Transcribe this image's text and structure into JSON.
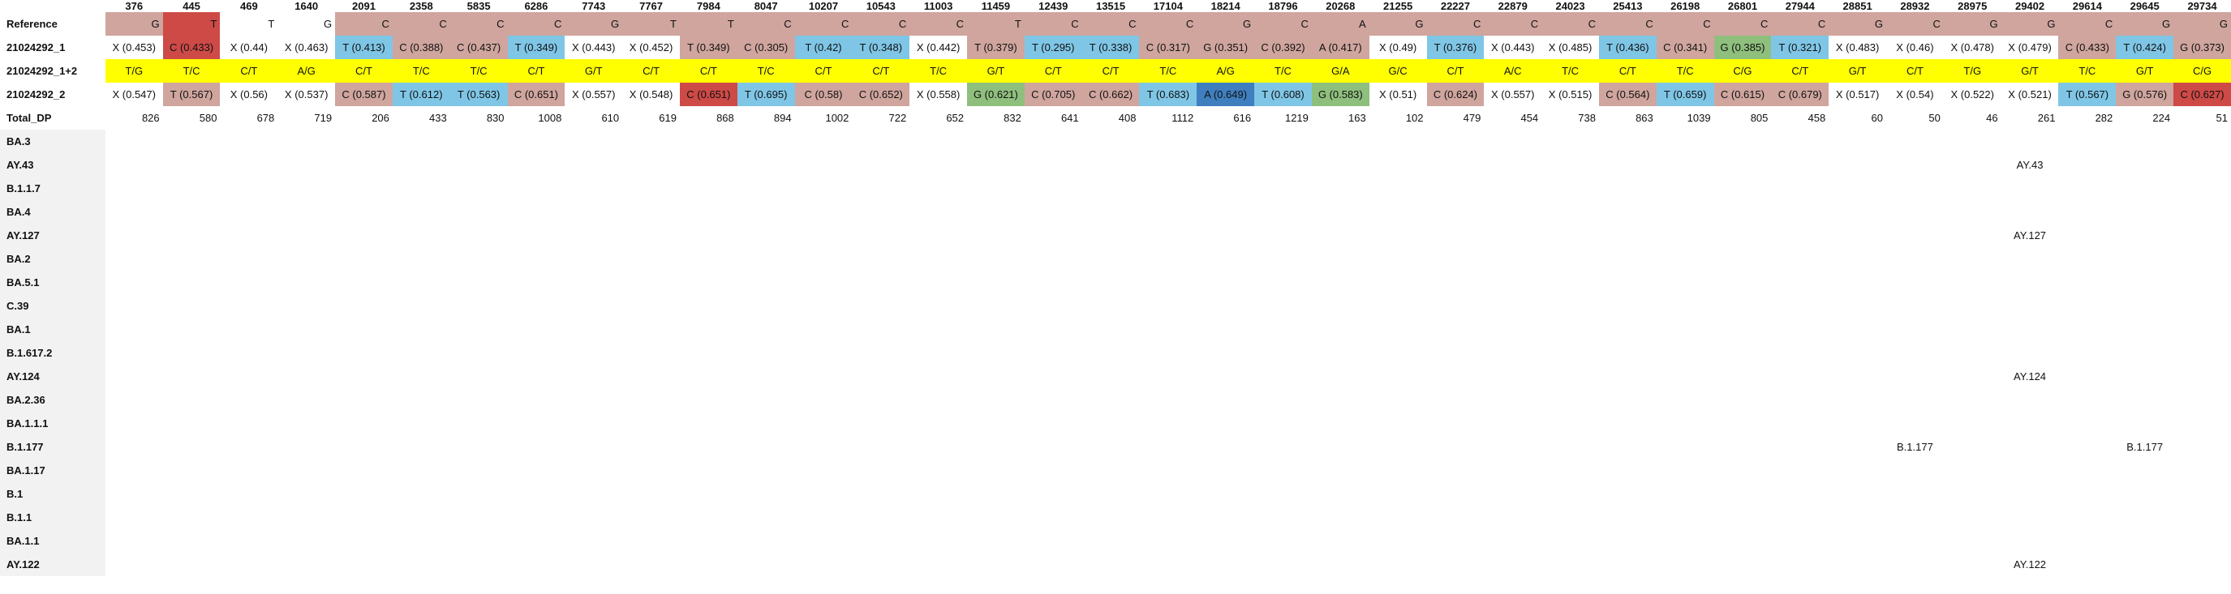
{
  "header": {
    "corner": "",
    "positions": [
      "376",
      "445",
      "469",
      "1640",
      "2091",
      "2358",
      "5835",
      "6286",
      "7743",
      "7767",
      "7984",
      "8047",
      "10207",
      "10543",
      "11003",
      "11459",
      "12439",
      "13515",
      "17104",
      "18214",
      "18796",
      "20268",
      "21255",
      "22227",
      "22879",
      "24023",
      "25413",
      "26198",
      "26801",
      "27944",
      "28851",
      "28932",
      "28975",
      "29402",
      "29614",
      "29645",
      "29734"
    ]
  },
  "colors": {
    "ref": "#cfa59e",
    "T": "#7fc6e6",
    "C": "#cfa59e",
    "C_hi": "#cd4a47",
    "G": "#8fbf7d",
    "A": "#3f7fbf",
    "X": "#ffffff",
    "yellow": "#ffff00",
    "stripe": "#f2f2f2"
  },
  "rows": {
    "reference": {
      "label": "Reference",
      "cells": [
        {
          "t": "G",
          "c": "ref"
        },
        {
          "t": "T",
          "c": "C_hi"
        },
        {
          "t": "T",
          "c": "X"
        },
        {
          "t": "G",
          "c": "X"
        },
        {
          "t": "C",
          "c": "ref"
        },
        {
          "t": "C",
          "c": "ref"
        },
        {
          "t": "C",
          "c": "ref"
        },
        {
          "t": "C",
          "c": "ref"
        },
        {
          "t": "G",
          "c": "ref"
        },
        {
          "t": "T",
          "c": "ref"
        },
        {
          "t": "T",
          "c": "ref"
        },
        {
          "t": "C",
          "c": "ref"
        },
        {
          "t": "C",
          "c": "ref"
        },
        {
          "t": "C",
          "c": "ref"
        },
        {
          "t": "C",
          "c": "ref"
        },
        {
          "t": "T",
          "c": "ref"
        },
        {
          "t": "C",
          "c": "ref"
        },
        {
          "t": "C",
          "c": "ref"
        },
        {
          "t": "C",
          "c": "ref"
        },
        {
          "t": "G",
          "c": "ref"
        },
        {
          "t": "C",
          "c": "ref"
        },
        {
          "t": "A",
          "c": "ref"
        },
        {
          "t": "G",
          "c": "ref"
        },
        {
          "t": "C",
          "c": "ref"
        },
        {
          "t": "C",
          "c": "ref"
        },
        {
          "t": "C",
          "c": "ref"
        },
        {
          "t": "C",
          "c": "ref"
        },
        {
          "t": "C",
          "c": "ref"
        },
        {
          "t": "C",
          "c": "ref"
        },
        {
          "t": "C",
          "c": "ref"
        },
        {
          "t": "G",
          "c": "ref"
        },
        {
          "t": "C",
          "c": "ref"
        },
        {
          "t": "G",
          "c": "ref"
        },
        {
          "t": "G",
          "c": "ref"
        },
        {
          "t": "C",
          "c": "ref"
        },
        {
          "t": "G",
          "c": "ref"
        },
        {
          "t": "G",
          "c": "ref"
        }
      ]
    },
    "s1": {
      "label": "21024292_1",
      "cells": [
        {
          "t": "X (0.453)",
          "c": "X"
        },
        {
          "t": "C (0.433)",
          "c": "C_hi"
        },
        {
          "t": "X (0.44)",
          "c": "X"
        },
        {
          "t": "X (0.463)",
          "c": "X"
        },
        {
          "t": "T (0.413)",
          "c": "T"
        },
        {
          "t": "C (0.388)",
          "c": "C"
        },
        {
          "t": "C (0.437)",
          "c": "C"
        },
        {
          "t": "T (0.349)",
          "c": "T"
        },
        {
          "t": "X (0.443)",
          "c": "X"
        },
        {
          "t": "X (0.452)",
          "c": "X"
        },
        {
          "t": "T (0.349)",
          "c": "C"
        },
        {
          "t": "C (0.305)",
          "c": "C"
        },
        {
          "t": "T (0.42)",
          "c": "T"
        },
        {
          "t": "T (0.348)",
          "c": "T"
        },
        {
          "t": "X (0.442)",
          "c": "X"
        },
        {
          "t": "T (0.379)",
          "c": "C"
        },
        {
          "t": "T (0.295)",
          "c": "T"
        },
        {
          "t": "T (0.338)",
          "c": "T"
        },
        {
          "t": "C (0.317)",
          "c": "C"
        },
        {
          "t": "G (0.351)",
          "c": "C"
        },
        {
          "t": "C (0.392)",
          "c": "C"
        },
        {
          "t": "A (0.417)",
          "c": "C"
        },
        {
          "t": "X (0.49)",
          "c": "X"
        },
        {
          "t": "T (0.376)",
          "c": "T"
        },
        {
          "t": "X (0.443)",
          "c": "X"
        },
        {
          "t": "X (0.485)",
          "c": "X"
        },
        {
          "t": "T (0.436)",
          "c": "T"
        },
        {
          "t": "C (0.341)",
          "c": "C"
        },
        {
          "t": "G (0.385)",
          "c": "G"
        },
        {
          "t": "T (0.321)",
          "c": "T"
        },
        {
          "t": "X (0.483)",
          "c": "X"
        },
        {
          "t": "X (0.46)",
          "c": "X"
        },
        {
          "t": "X (0.478)",
          "c": "X"
        },
        {
          "t": "X (0.479)",
          "c": "X"
        },
        {
          "t": "C (0.433)",
          "c": "C"
        },
        {
          "t": "T (0.424)",
          "c": "T"
        },
        {
          "t": "G (0.373)",
          "c": "C"
        }
      ]
    },
    "s12": {
      "label": "21024292_1+2",
      "cells": [
        "T/G",
        "T/C",
        "C/T",
        "A/G",
        "C/T",
        "T/C",
        "T/C",
        "C/T",
        "G/T",
        "C/T",
        "C/T",
        "T/C",
        "C/T",
        "C/T",
        "T/C",
        "G/T",
        "C/T",
        "C/T",
        "T/C",
        "A/G",
        "T/C",
        "G/A",
        "G/C",
        "C/T",
        "A/C",
        "T/C",
        "C/T",
        "T/C",
        "C/G",
        "C/T",
        "G/T",
        "C/T",
        "T/G",
        "G/T",
        "T/C",
        "G/T",
        "C/G"
      ]
    },
    "s2": {
      "label": "21024292_2",
      "cells": [
        {
          "t": "X (0.547)",
          "c": "X"
        },
        {
          "t": "T (0.567)",
          "c": "C"
        },
        {
          "t": "X (0.56)",
          "c": "X"
        },
        {
          "t": "X (0.537)",
          "c": "X"
        },
        {
          "t": "C (0.587)",
          "c": "C"
        },
        {
          "t": "T (0.612)",
          "c": "T"
        },
        {
          "t": "T (0.563)",
          "c": "T"
        },
        {
          "t": "C (0.651)",
          "c": "C"
        },
        {
          "t": "X (0.557)",
          "c": "X"
        },
        {
          "t": "X (0.548)",
          "c": "X"
        },
        {
          "t": "C (0.651)",
          "c": "C_hi"
        },
        {
          "t": "T (0.695)",
          "c": "T"
        },
        {
          "t": "C (0.58)",
          "c": "C"
        },
        {
          "t": "C (0.652)",
          "c": "C"
        },
        {
          "t": "X (0.558)",
          "c": "X"
        },
        {
          "t": "G (0.621)",
          "c": "G"
        },
        {
          "t": "C (0.705)",
          "c": "C"
        },
        {
          "t": "C (0.662)",
          "c": "C"
        },
        {
          "t": "T (0.683)",
          "c": "T"
        },
        {
          "t": "A (0.649)",
          "c": "A"
        },
        {
          "t": "T (0.608)",
          "c": "T"
        },
        {
          "t": "G (0.583)",
          "c": "G"
        },
        {
          "t": "X (0.51)",
          "c": "X"
        },
        {
          "t": "C (0.624)",
          "c": "C"
        },
        {
          "t": "X (0.557)",
          "c": "X"
        },
        {
          "t": "X (0.515)",
          "c": "X"
        },
        {
          "t": "C (0.564)",
          "c": "C"
        },
        {
          "t": "T (0.659)",
          "c": "T"
        },
        {
          "t": "C (0.615)",
          "c": "C"
        },
        {
          "t": "C (0.679)",
          "c": "C"
        },
        {
          "t": "X (0.517)",
          "c": "X"
        },
        {
          "t": "X (0.54)",
          "c": "X"
        },
        {
          "t": "X (0.522)",
          "c": "X"
        },
        {
          "t": "X (0.521)",
          "c": "X"
        },
        {
          "t": "T (0.567)",
          "c": "T"
        },
        {
          "t": "G (0.576)",
          "c": "C"
        },
        {
          "t": "C (0.627)",
          "c": "C_hi"
        }
      ]
    },
    "dp": {
      "label": "Total_DP",
      "cells": [
        "826",
        "580",
        "678",
        "719",
        "206",
        "433",
        "830",
        "1008",
        "610",
        "619",
        "868",
        "894",
        "1002",
        "722",
        "652",
        "832",
        "641",
        "408",
        "1112",
        "616",
        "1219",
        "163",
        "102",
        "479",
        "454",
        "738",
        "863",
        "1039",
        "805",
        "458",
        "60",
        "50",
        "46",
        "261",
        "282",
        "224",
        "51"
      ]
    },
    "lineages": [
      {
        "label": "BA.3",
        "marks": {}
      },
      {
        "label": "AY.43",
        "marks": {
          "33": "AY.43"
        }
      },
      {
        "label": "B.1.1.7",
        "marks": {}
      },
      {
        "label": "BA.4",
        "marks": {}
      },
      {
        "label": "AY.127",
        "marks": {
          "33": "AY.127"
        }
      },
      {
        "label": "BA.2",
        "marks": {}
      },
      {
        "label": "BA.5.1",
        "marks": {}
      },
      {
        "label": "C.39",
        "marks": {}
      },
      {
        "label": "BA.1",
        "marks": {}
      },
      {
        "label": "B.1.617.2",
        "marks": {}
      },
      {
        "label": "AY.124",
        "marks": {
          "33": "AY.124"
        }
      },
      {
        "label": "BA.2.36",
        "marks": {}
      },
      {
        "label": "BA.1.1.1",
        "marks": {}
      },
      {
        "label": "B.1.177",
        "marks": {
          "31": "B.1.177",
          "35": "B.1.177"
        }
      },
      {
        "label": "BA.1.17",
        "marks": {}
      },
      {
        "label": "B.1",
        "marks": {}
      },
      {
        "label": "B.1.1",
        "marks": {}
      },
      {
        "label": "BA.1.1",
        "marks": {}
      },
      {
        "label": "AY.122",
        "marks": {
          "33": "AY.122"
        }
      }
    ]
  }
}
